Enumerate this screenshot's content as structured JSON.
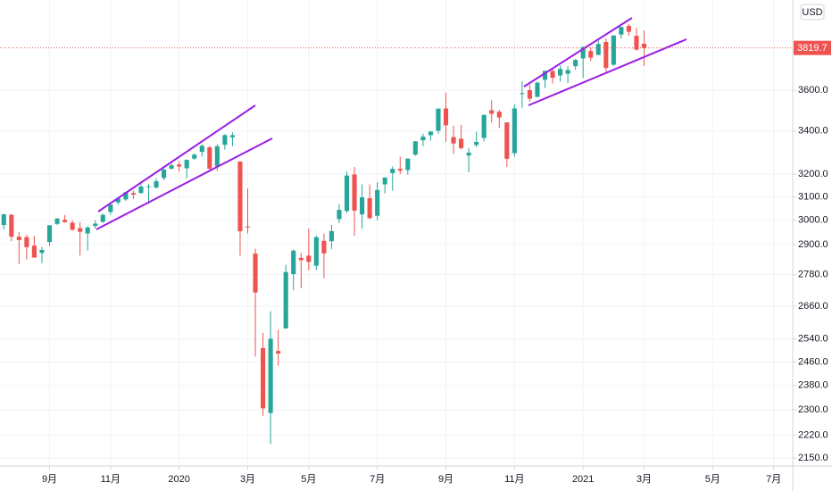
{
  "chart_data": {
    "type": "candlestick",
    "categories": [
      null,
      null,
      null,
      null,
      null,
      null,
      "9月",
      null,
      null,
      null,
      null,
      null,
      null,
      null,
      "11月",
      null,
      null,
      null,
      null,
      null,
      null,
      null,
      null,
      "2020",
      null,
      null,
      null,
      null,
      null,
      null,
      null,
      null,
      "3月",
      null,
      null,
      null,
      null,
      null,
      null,
      null,
      "5月",
      null,
      null,
      null,
      null,
      null,
      null,
      null,
      null,
      "7月",
      null,
      null,
      null,
      null,
      null,
      null,
      null,
      null,
      "9月",
      null,
      null,
      null,
      null,
      null,
      null,
      null,
      null,
      "11月",
      null,
      null,
      null,
      null,
      null,
      null,
      null,
      null,
      "2021",
      null,
      null,
      null,
      null,
      null,
      null,
      null,
      "3月",
      null,
      null,
      null,
      null,
      null,
      null,
      null,
      null,
      "5月",
      null,
      null,
      null,
      null,
      null,
      null,
      null,
      "7月",
      null,
      null
    ],
    "open": [
      2980,
      3023,
      2932,
      2930,
      2895,
      2866,
      2910,
      2985,
      3002,
      2990,
      2967,
      2945,
      2976,
      2993,
      3035,
      3076,
      3089,
      3117,
      3117,
      3143,
      3141,
      3183,
      3225,
      3244,
      3227,
      3271,
      3302,
      3323,
      3235,
      3335,
      3370,
      3257,
      2974,
      2863,
      2508,
      2290,
      2498,
      2578,
      2782,
      2846,
      2855,
      2815,
      2915,
      2913,
      3005,
      3039,
      3199,
      3025,
      3094,
      3019,
      3155,
      3205,
      3224,
      3219,
      3289,
      3356,
      3380,
      3401,
      3509,
      3371,
      3363,
      3285,
      3334,
      3367,
      3500,
      3493,
      3441,
      3296,
      3583,
      3600,
      3566,
      3653,
      3698,
      3675,
      3684,
      3723,
      3764,
      3803,
      3782,
      3852,
      3731,
      3892,
      3939,
      3885,
      3842,
      null,
      null,
      null,
      null,
      null,
      null,
      null,
      null,
      null,
      null,
      null,
      null,
      null,
      null,
      null,
      null,
      null,
      null,
      null
    ],
    "high": [
      3028,
      3027,
      2950,
      2940,
      2935,
      2890,
      2980,
      3010,
      3022,
      3000,
      2992,
      2975,
      3000,
      3028,
      3067,
      3094,
      3122,
      3127,
      3155,
      3158,
      3182,
      3225,
      3247,
      3260,
      3267,
      3295,
      3337,
      3329,
      3338,
      3385,
      3393,
      3259,
      3136,
      2883,
      2562,
      2641,
      2574,
      2818,
      2880,
      2867,
      2965,
      2935,
      2945,
      2980,
      3068,
      3212,
      3233,
      3155,
      3155,
      3165,
      3186,
      3235,
      3280,
      3272,
      3352,
      3387,
      3399,
      3509,
      3588,
      3425,
      3429,
      3320,
      3397,
      3479,
      3550,
      3502,
      3441,
      3529,
      3646,
      3628,
      3644,
      3699,
      3712,
      3726,
      3723,
      3760,
      3827,
      3823,
      3860,
      3870,
      3887,
      3932,
      3950,
      3929,
      3914,
      null,
      null,
      null,
      null,
      null,
      null,
      null,
      null,
      null,
      null,
      null,
      null,
      null,
      null,
      null,
      null,
      null,
      null,
      null
    ],
    "low": [
      2962,
      2914,
      2822,
      2840,
      2850,
      2825,
      2895,
      2980,
      2990,
      2955,
      2855,
      2875,
      2965,
      2990,
      3023,
      3066,
      3083,
      3090,
      3113,
      3070,
      3136,
      3173,
      3221,
      3212,
      3181,
      3264,
      3280,
      3215,
      3214,
      3312,
      3328,
      2855,
      2945,
      2478,
      2280,
      2192,
      2447,
      2578,
      2720,
      2727,
      2797,
      2798,
      2766,
      2881,
      2988,
      3031,
      2936,
      2965,
      3004,
      3000,
      3115,
      3127,
      3201,
      3198,
      3284,
      3328,
      3354,
      3387,
      3349,
      3293,
      3313,
      3209,
      3323,
      3350,
      3441,
      3415,
      3233,
      3279,
      3512,
      3543,
      3565,
      3611,
      3634,
      3643,
      3636,
      3704,
      3663,
      3750,
      3782,
      3694,
      3725,
      3870,
      3885,
      3805,
      3723,
      null,
      null,
      null,
      null,
      null,
      null,
      null,
      null,
      null,
      null,
      null,
      null,
      null,
      null,
      null,
      null,
      null,
      null,
      null
    ],
    "close": [
      3025,
      2932,
      2918,
      2889,
      2847,
      2878,
      2979,
      3007,
      2992,
      2961,
      2952,
      2970,
      2986,
      3023,
      3067,
      3093,
      3120,
      3110,
      3145,
      3146,
      3169,
      3221,
      3240,
      3235,
      3265,
      3289,
      3330,
      3225,
      3328,
      3380,
      3380,
      2954,
      2972,
      2711,
      2305,
      2541,
      2489,
      2790,
      2875,
      2837,
      2830,
      2930,
      2864,
      2955,
      3044,
      3194,
      3041,
      3098,
      3009,
      3130,
      3185,
      3224,
      3216,
      3271,
      3351,
      3373,
      3397,
      3508,
      3427,
      3341,
      3319,
      3298,
      3348,
      3477,
      3483,
      3465,
      3270,
      3509,
      3585,
      3557,
      3638,
      3699,
      3663,
      3709,
      3703,
      3756,
      3825,
      3768,
      3841,
      3714,
      3887,
      3934,
      3907,
      3811,
      3819.7,
      null,
      null,
      null,
      null,
      null,
      null,
      null,
      null,
      null,
      null,
      null,
      null,
      null,
      null,
      null,
      null,
      null,
      null,
      null
    ],
    "up_color": "#26a69a",
    "down_color": "#ef5350",
    "ylim": [
      2126,
      4085
    ],
    "log_scale": true,
    "grid": true,
    "yticks": [
      {
        "value": 2150,
        "label": "2150.0"
      },
      {
        "value": 2220,
        "label": "2220.0"
      },
      {
        "value": 2300,
        "label": "2300.0"
      },
      {
        "value": 2380,
        "label": "2380.0"
      },
      {
        "value": 2460,
        "label": "2460.0"
      },
      {
        "value": 2540,
        "label": "2540.0"
      },
      {
        "value": 2660,
        "label": "2660.0"
      },
      {
        "value": 2780,
        "label": "2780.0"
      },
      {
        "value": 2900,
        "label": "2900.0"
      },
      {
        "value": 3000,
        "label": "3000.0"
      },
      {
        "value": 3100,
        "label": "3100.0"
      },
      {
        "value": 3200,
        "label": "3200.0"
      },
      {
        "value": 3400,
        "label": "3400.0"
      },
      {
        "value": 3600,
        "label": "3600.0"
      }
    ],
    "currency": "USD",
    "last_price": 3819.7
  }
}
